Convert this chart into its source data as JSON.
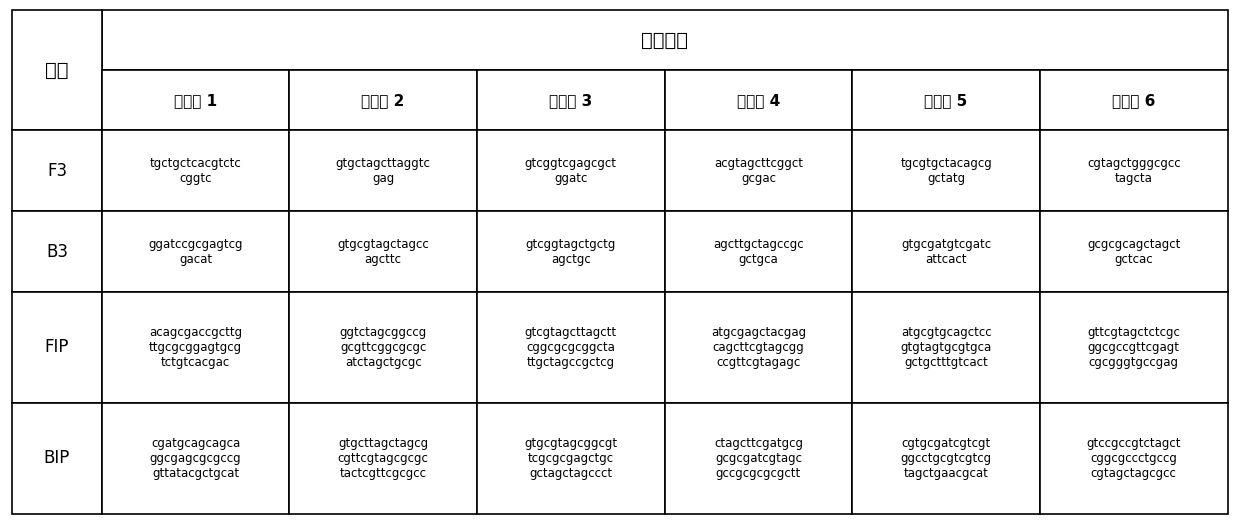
{
  "title": "引物序列",
  "col_header_left": "组分",
  "col_headers": [
    "引物组 1",
    "引物组 2",
    "引物组 3",
    "引物组 4",
    "引物组 5",
    "引物组 6"
  ],
  "rows": [
    {
      "label": "F3",
      "cells": [
        "tgctgctcacgtctc\ncggtc",
        "gtgctagcttaggtc\ngag",
        "gtcggtcgagcgct\nggatc",
        "acgtagcttcggct\ngcgac",
        "tgcgtgctacagcg\ngctatg",
        "cgtagctgggcgcc\ntagcta"
      ]
    },
    {
      "label": "B3",
      "cells": [
        "ggatccgcgagtcg\ngacat",
        "gtgcgtagctagcc\nagcttc",
        "gtcggtagctgctg\nagctgc",
        "agcttgctagccgc\ngctgca",
        "gtgcgatgtcgatc\nattcact",
        "gcgcgcagctagct\ngctcac"
      ]
    },
    {
      "label": "FIP",
      "cells": [
        "acagcgaccgcttg\nttgcgcggagtgcg\ntctgtcacgac",
        "ggtctagcggccg\ngcgttcggcgcgc\natctagctgcgc",
        "gtcgtagcttagctt\ncggcgcgcggcta\nttgctagccgctcg",
        "atgcgagctacgag\ncagcttcgtagcgg\nccgttcgtagagc",
        "atgcgtgcagctcc\ngtgtagtgcgtgca\ngctgctttgtcact",
        "gttcgtagctctcgc\nggcgccgttcgagt\ncgcgggtgccgag"
      ]
    },
    {
      "label": "BIP",
      "cells": [
        "cgatgcagcagca\nggcgagcgcgccg\ngttatacgctgcat",
        "gtgcttagctagcg\ncgttcgtagcgcgc\ntactcgttcgcgcc",
        "gtgcgtagcggcgt\ntcgcgcgagctgc\ngctagctagccct",
        "ctagcttcgatgcg\ngcgcgatcgtagc\ngccgcgcgcgctt",
        "cgtgcgatcgtcgt\nggcctgcgtcgtcg\ntagctgaacgcat",
        "gtccgccgtctagct\ncggcgccctgccg\ncgtagctagcgcc"
      ]
    }
  ],
  "bg_color": "#ffffff",
  "header_bg": "#ffffff",
  "border_color": "#000000",
  "text_color": "#000000",
  "title_fontsize": 14,
  "header_fontsize": 11,
  "cell_fontsize": 8.5,
  "label_fontsize": 12
}
